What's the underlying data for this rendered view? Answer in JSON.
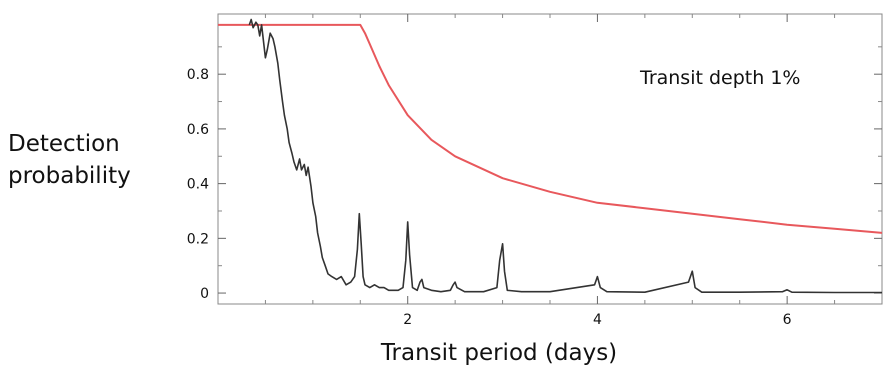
{
  "chart_data": {
    "type": "line",
    "ylabel_lines": [
      "Detection",
      "probability"
    ],
    "xlabel": "Transit period (days)",
    "annotation": "Transit depth 1%",
    "xlim": [
      0,
      7
    ],
    "ylim": [
      -0.04,
      1.02
    ],
    "x_ticks": [
      2,
      4,
      6
    ],
    "x_tick_labels": [
      "2",
      "4",
      "6"
    ],
    "y_ticks": [
      0,
      0.2,
      0.4,
      0.6,
      0.8
    ],
    "y_tick_labels": [
      "0",
      "0.2",
      "0.4",
      "0.6",
      "0.8"
    ],
    "grid": false,
    "series": [
      {
        "color": "#e8585c",
        "points": [
          [
            0,
            0.98
          ],
          [
            1.5,
            0.98
          ],
          [
            1.55,
            0.95
          ],
          [
            1.6,
            0.91
          ],
          [
            1.7,
            0.83
          ],
          [
            1.8,
            0.76
          ],
          [
            2.0,
            0.65
          ],
          [
            2.25,
            0.56
          ],
          [
            2.5,
            0.5
          ],
          [
            3.0,
            0.42
          ],
          [
            3.5,
            0.37
          ],
          [
            4.0,
            0.33
          ],
          [
            4.5,
            0.31
          ],
          [
            5.0,
            0.29
          ],
          [
            5.5,
            0.27
          ],
          [
            6.0,
            0.25
          ],
          [
            6.5,
            0.235
          ],
          [
            7.0,
            0.22
          ]
        ]
      },
      {
        "color": "#333333",
        "points": [
          [
            0.33,
            0.98
          ],
          [
            0.35,
            1.0
          ],
          [
            0.37,
            0.97
          ],
          [
            0.4,
            0.99
          ],
          [
            0.42,
            0.98
          ],
          [
            0.44,
            0.94
          ],
          [
            0.46,
            0.98
          ],
          [
            0.48,
            0.92
          ],
          [
            0.5,
            0.86
          ],
          [
            0.52,
            0.89
          ],
          [
            0.55,
            0.95
          ],
          [
            0.58,
            0.93
          ],
          [
            0.6,
            0.9
          ],
          [
            0.63,
            0.84
          ],
          [
            0.65,
            0.78
          ],
          [
            0.68,
            0.7
          ],
          [
            0.7,
            0.65
          ],
          [
            0.73,
            0.6
          ],
          [
            0.75,
            0.55
          ],
          [
            0.78,
            0.51
          ],
          [
            0.8,
            0.48
          ],
          [
            0.83,
            0.45
          ],
          [
            0.86,
            0.49
          ],
          [
            0.88,
            0.45
          ],
          [
            0.91,
            0.47
          ],
          [
            0.93,
            0.43
          ],
          [
            0.95,
            0.46
          ],
          [
            0.98,
            0.39
          ],
          [
            1.0,
            0.33
          ],
          [
            1.03,
            0.28
          ],
          [
            1.05,
            0.22
          ],
          [
            1.08,
            0.17
          ],
          [
            1.1,
            0.13
          ],
          [
            1.13,
            0.1
          ],
          [
            1.16,
            0.07
          ],
          [
            1.2,
            0.06
          ],
          [
            1.25,
            0.05
          ],
          [
            1.3,
            0.06
          ],
          [
            1.35,
            0.03
          ],
          [
            1.4,
            0.04
          ],
          [
            1.44,
            0.06
          ],
          [
            1.47,
            0.16
          ],
          [
            1.49,
            0.29
          ],
          [
            1.51,
            0.18
          ],
          [
            1.53,
            0.06
          ],
          [
            1.55,
            0.03
          ],
          [
            1.6,
            0.02
          ],
          [
            1.65,
            0.03
          ],
          [
            1.7,
            0.02
          ],
          [
            1.75,
            0.02
          ],
          [
            1.8,
            0.01
          ],
          [
            1.85,
            0.01
          ],
          [
            1.9,
            0.01
          ],
          [
            1.95,
            0.02
          ],
          [
            1.98,
            0.12
          ],
          [
            2.0,
            0.26
          ],
          [
            2.02,
            0.14
          ],
          [
            2.05,
            0.02
          ],
          [
            2.1,
            0.01
          ],
          [
            2.13,
            0.04
          ],
          [
            2.15,
            0.05
          ],
          [
            2.17,
            0.02
          ],
          [
            2.25,
            0.01
          ],
          [
            2.35,
            0.005
          ],
          [
            2.45,
            0.01
          ],
          [
            2.48,
            0.03
          ],
          [
            2.5,
            0.04
          ],
          [
            2.52,
            0.02
          ],
          [
            2.6,
            0.005
          ],
          [
            2.8,
            0.005
          ],
          [
            2.94,
            0.02
          ],
          [
            2.97,
            0.12
          ],
          [
            3.0,
            0.18
          ],
          [
            3.02,
            0.08
          ],
          [
            3.05,
            0.01
          ],
          [
            3.2,
            0.005
          ],
          [
            3.5,
            0.005
          ],
          [
            3.97,
            0.03
          ],
          [
            4.0,
            0.06
          ],
          [
            4.03,
            0.02
          ],
          [
            4.1,
            0.005
          ],
          [
            4.5,
            0.003
          ],
          [
            4.96,
            0.04
          ],
          [
            5.0,
            0.08
          ],
          [
            5.03,
            0.02
          ],
          [
            5.1,
            0.003
          ],
          [
            5.5,
            0.003
          ],
          [
            5.95,
            0.005
          ],
          [
            6.0,
            0.012
          ],
          [
            6.05,
            0.003
          ],
          [
            6.5,
            0.002
          ],
          [
            7.0,
            0.002
          ]
        ]
      }
    ]
  }
}
